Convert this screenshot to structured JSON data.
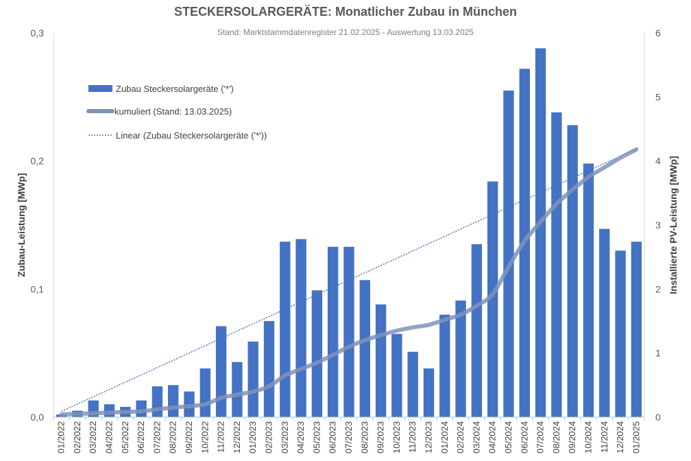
{
  "chart_data": {
    "type": "bar",
    "title": "STECKERSOLARGERÄTE: Monatlicher Zubau in München",
    "subtitle": "Stand: Marktstammdatenregister 21.02.2025 - Auswertung 13.03.2025",
    "ylabel": "Zubau-Leistung [MWp]",
    "y2label": "Installierte PV-Leistung [MWp]",
    "ylim": [
      0,
      0.3
    ],
    "y2lim": [
      0,
      6
    ],
    "yticks": [
      "0,0",
      "0,1",
      "0,2",
      "0,3"
    ],
    "y2ticks": [
      "0",
      "1",
      "2",
      "3",
      "4",
      "5",
      "6"
    ],
    "grid": false,
    "legend_position": "top-left",
    "categories": [
      "01/2022",
      "02/2022",
      "03/2022",
      "04/2022",
      "05/2022",
      "06/2022",
      "07/2022",
      "08/2022",
      "09/2022",
      "10/2022",
      "11/2022",
      "12/2022",
      "01/2023",
      "02/2023",
      "03/2023",
      "04/2023",
      "05/2023",
      "06/2023",
      "07/2023",
      "08/2023",
      "09/2023",
      "10/2023",
      "11/2023",
      "12/2023",
      "01/2024",
      "02/2024",
      "03/2024",
      "04/2024",
      "05/2024",
      "06/2024",
      "07/2024",
      "08/2024",
      "09/2024",
      "10/2024",
      "11/2024",
      "12/2024",
      "01/2025"
    ],
    "series": [
      {
        "name": "Zubau Steckersolargeräte ('*')",
        "type": "bar",
        "axis": "left",
        "color": "#4472c4",
        "values": [
          0.002,
          0.005,
          0.013,
          0.01,
          0.008,
          0.013,
          0.024,
          0.025,
          0.02,
          0.038,
          0.071,
          0.043,
          0.059,
          0.075,
          0.137,
          0.139,
          0.099,
          0.133,
          0.133,
          0.107,
          0.088,
          0.065,
          0.051,
          0.038,
          0.08,
          0.091,
          0.135,
          0.184,
          0.255,
          0.272,
          0.288,
          0.238,
          0.228,
          0.198,
          0.147,
          0.13,
          0.137
        ]
      },
      {
        "name": "kumuliert (Stand: 13.03.2025)",
        "type": "line",
        "axis": "right",
        "color": "#7f93b8",
        "values": [
          0.04,
          0.05,
          0.06,
          0.07,
          0.08,
          0.09,
          0.12,
          0.15,
          0.17,
          0.2,
          0.3,
          0.35,
          0.4,
          0.48,
          0.65,
          0.75,
          0.85,
          0.97,
          1.1,
          1.2,
          1.28,
          1.35,
          1.4,
          1.44,
          1.52,
          1.6,
          1.74,
          1.92,
          2.35,
          2.75,
          3.05,
          3.33,
          3.55,
          3.75,
          3.9,
          4.05,
          4.18
        ]
      },
      {
        "name": "Linear (Zubau Steckersolargeräte ('*'))",
        "type": "trend",
        "axis": "left",
        "color": "#4472c4",
        "start": 0.0045,
        "end": 0.2095
      }
    ]
  }
}
